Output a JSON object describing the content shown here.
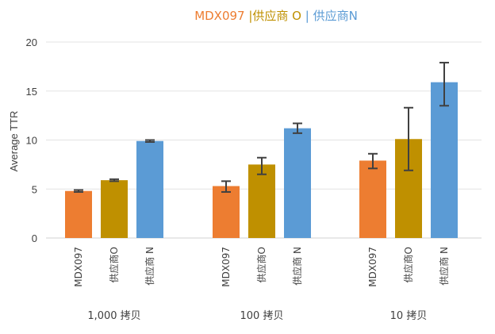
{
  "chart_data": {
    "type": "bar",
    "title_parts": [
      {
        "text": "MDX097",
        "color": "#ED7D31"
      },
      {
        "text": " |供应商 O",
        "color": "#BF9000"
      },
      {
        "text": " | 供应商N",
        "color": "#5B9BD5"
      }
    ],
    "ylabel": "Average TTR",
    "ylim": [
      0,
      20
    ],
    "yticks": [
      0,
      5,
      10,
      15,
      20
    ],
    "grid": true,
    "groups": [
      {
        "label": "1,000 拷贝",
        "bars": [
          {
            "label": "MDX097",
            "value": 4.8,
            "err_low": 4.7,
            "err_high": 4.9,
            "color": "#ED7D31"
          },
          {
            "label": "供应商O",
            "value": 5.9,
            "err_low": 5.8,
            "err_high": 6.0,
            "color": "#BF9000"
          },
          {
            "label": "供应商 N",
            "value": 9.9,
            "err_low": 9.8,
            "err_high": 10.0,
            "color": "#5B9BD5"
          }
        ]
      },
      {
        "label": "100 拷贝",
        "bars": [
          {
            "label": "MDX097",
            "value": 5.3,
            "err_low": 4.7,
            "err_high": 5.8,
            "color": "#ED7D31"
          },
          {
            "label": "供应商O",
            "value": 7.5,
            "err_low": 6.5,
            "err_high": 8.2,
            "color": "#BF9000"
          },
          {
            "label": "供应商 N",
            "value": 11.2,
            "err_low": 10.7,
            "err_high": 11.7,
            "color": "#5B9BD5"
          }
        ]
      },
      {
        "label": "10 拷贝",
        "bars": [
          {
            "label": "MDX097",
            "value": 7.9,
            "err_low": 7.1,
            "err_high": 8.6,
            "color": "#ED7D31"
          },
          {
            "label": "供应商O",
            "value": 10.1,
            "err_low": 6.9,
            "err_high": 13.3,
            "color": "#BF9000"
          },
          {
            "label": "供应商 N",
            "value": 15.9,
            "err_low": 13.5,
            "err_high": 17.9,
            "color": "#5B9BD5"
          }
        ]
      }
    ]
  }
}
